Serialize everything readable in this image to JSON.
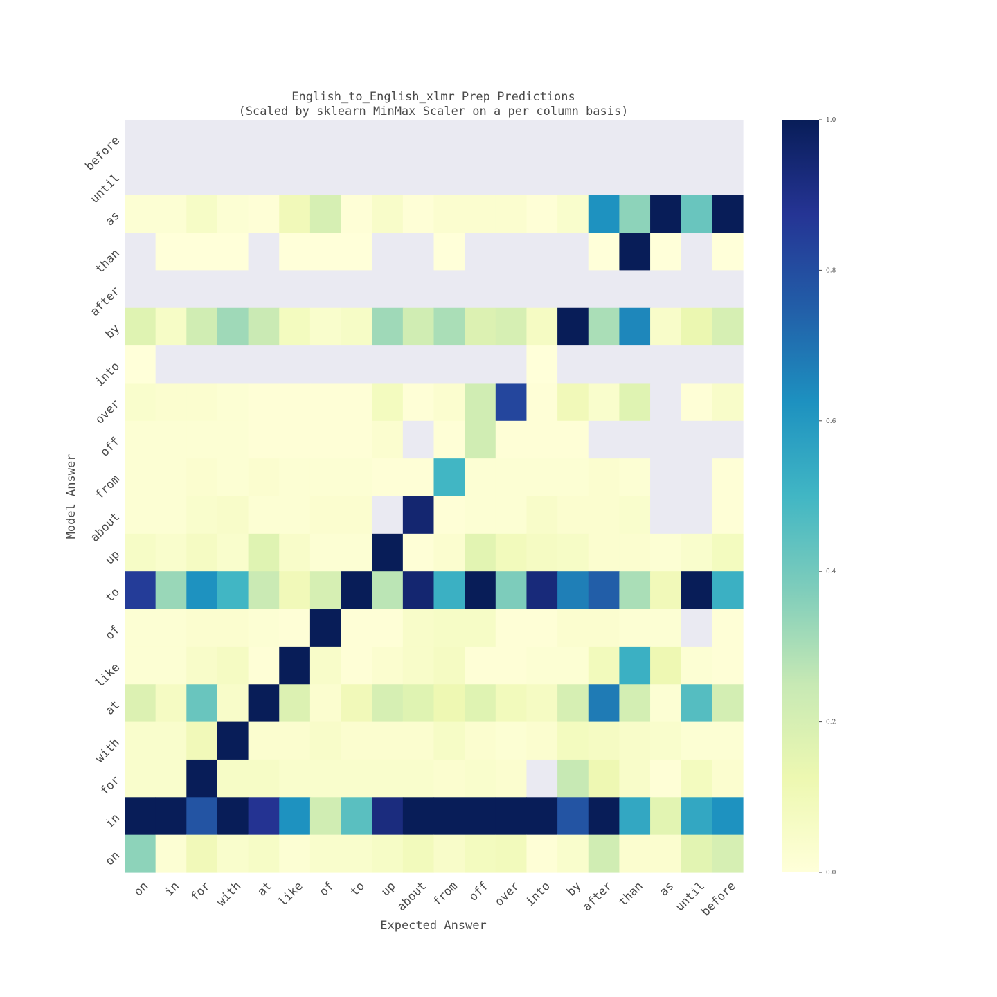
{
  "chart_data": {
    "type": "heatmap",
    "title": "English_to_English_xlmr Prep Predictions",
    "subtitle": "(Scaled by sklearn MinMax Scaler on a per column basis)",
    "xlabel": "Expected Answer",
    "ylabel": "Model Answer",
    "x_categories": [
      "on",
      "in",
      "for",
      "with",
      "at",
      "like",
      "of",
      "to",
      "up",
      "about",
      "from",
      "off",
      "over",
      "into",
      "by",
      "after",
      "than",
      "as",
      "until",
      "before"
    ],
    "y_categories": [
      "before",
      "until",
      "as",
      "than",
      "after",
      "by",
      "into",
      "over",
      "off",
      "from",
      "about",
      "up",
      "to",
      "of",
      "like",
      "at",
      "with",
      "for",
      "in",
      "on"
    ],
    "values": [
      [
        null,
        null,
        null,
        null,
        null,
        null,
        null,
        null,
        null,
        null,
        null,
        null,
        null,
        null,
        null,
        null,
        null,
        null,
        null,
        null
      ],
      [
        null,
        null,
        null,
        null,
        null,
        null,
        null,
        null,
        null,
        null,
        null,
        null,
        null,
        null,
        null,
        null,
        null,
        null,
        null,
        null
      ],
      [
        0.02,
        0.02,
        0.06,
        0.02,
        0.01,
        0.1,
        0.2,
        0.01,
        0.05,
        0.01,
        0.03,
        0.03,
        0.03,
        0.01,
        0.04,
        0.62,
        0.35,
        1.0,
        0.42,
        1.0
      ],
      [
        null,
        0.0,
        0.0,
        0.0,
        null,
        0.0,
        0.0,
        0.0,
        null,
        null,
        0.0,
        null,
        null,
        null,
        null,
        0.0,
        1.0,
        0.0,
        null,
        0.0
      ],
      [
        null,
        null,
        null,
        null,
        null,
        null,
        null,
        null,
        null,
        null,
        null,
        null,
        null,
        null,
        null,
        null,
        null,
        null,
        null,
        null
      ],
      [
        0.17,
        0.06,
        0.22,
        0.32,
        0.24,
        0.08,
        0.04,
        0.06,
        0.32,
        0.22,
        0.3,
        0.18,
        0.2,
        0.07,
        1.0,
        0.3,
        0.65,
        0.05,
        0.13,
        0.2
      ],
      [
        0.0,
        null,
        null,
        null,
        null,
        null,
        null,
        null,
        null,
        null,
        null,
        null,
        null,
        0.0,
        null,
        null,
        null,
        null,
        null,
        null
      ],
      [
        0.04,
        0.03,
        0.03,
        0.02,
        0.01,
        0.01,
        0.01,
        0.01,
        0.08,
        0.01,
        0.03,
        0.22,
        0.82,
        0.01,
        0.1,
        0.04,
        0.17,
        null,
        0.01,
        0.05
      ],
      [
        0.02,
        0.02,
        0.02,
        0.02,
        0.01,
        0.01,
        0.01,
        0.01,
        0.03,
        null,
        0.01,
        0.22,
        0.01,
        0.01,
        0.01,
        null,
        null,
        null,
        null,
        null
      ],
      [
        0.02,
        0.02,
        0.03,
        0.02,
        0.03,
        0.02,
        0.02,
        0.02,
        0.01,
        0.01,
        0.5,
        0.02,
        0.02,
        0.02,
        0.02,
        0.03,
        0.02,
        null,
        null,
        0.01
      ],
      [
        0.02,
        0.02,
        0.04,
        0.05,
        0.02,
        0.02,
        0.03,
        0.03,
        null,
        0.95,
        0.01,
        0.02,
        0.02,
        0.05,
        0.03,
        0.03,
        0.04,
        null,
        null,
        0.01
      ],
      [
        0.06,
        0.04,
        0.07,
        0.04,
        0.17,
        0.05,
        0.02,
        0.02,
        1.0,
        0.01,
        0.03,
        0.16,
        0.09,
        0.07,
        0.06,
        0.03,
        0.03,
        0.02,
        0.04,
        0.08
      ],
      [
        0.85,
        0.33,
        0.62,
        0.5,
        0.24,
        0.1,
        0.2,
        1.0,
        0.27,
        0.95,
        0.52,
        1.0,
        0.38,
        0.93,
        0.67,
        0.75,
        0.3,
        0.1,
        1.0,
        0.52
      ],
      [
        0.02,
        0.02,
        0.03,
        0.03,
        0.02,
        0.01,
        1.0,
        0.01,
        0.01,
        0.05,
        0.06,
        0.06,
        0.01,
        0.01,
        0.03,
        0.03,
        0.02,
        0.02,
        null,
        0.01
      ],
      [
        0.02,
        0.02,
        0.05,
        0.07,
        0.01,
        1.0,
        0.05,
        0.01,
        0.03,
        0.05,
        0.07,
        0.01,
        0.01,
        0.02,
        0.02,
        0.09,
        0.52,
        0.12,
        0.02,
        0.01
      ],
      [
        0.18,
        0.07,
        0.42,
        0.05,
        1.0,
        0.18,
        0.03,
        0.1,
        0.2,
        0.17,
        0.12,
        0.17,
        0.09,
        0.07,
        0.2,
        0.68,
        0.21,
        0.02,
        0.46,
        0.21
      ],
      [
        0.04,
        0.04,
        0.1,
        1.0,
        0.03,
        0.03,
        0.05,
        0.03,
        0.03,
        0.03,
        0.06,
        0.03,
        0.02,
        0.03,
        0.08,
        0.07,
        0.05,
        0.04,
        0.02,
        0.02
      ],
      [
        0.04,
        0.04,
        1.0,
        0.06,
        0.06,
        0.04,
        0.04,
        0.04,
        0.04,
        0.04,
        0.03,
        0.04,
        0.03,
        null,
        0.25,
        0.12,
        0.05,
        0.01,
        0.08,
        0.03
      ],
      [
        1.0,
        1.0,
        0.78,
        1.0,
        0.88,
        0.62,
        0.22,
        0.45,
        0.92,
        1.0,
        1.0,
        1.0,
        1.0,
        1.0,
        0.78,
        1.0,
        0.55,
        0.16,
        0.55,
        0.62
      ],
      [
        0.35,
        0.02,
        0.1,
        0.04,
        0.06,
        0.02,
        0.04,
        0.04,
        0.06,
        0.09,
        0.05,
        0.08,
        0.09,
        0.01,
        0.04,
        0.22,
        0.03,
        0.03,
        0.16,
        0.2
      ]
    ],
    "colorbar": {
      "ticks": [
        "0.0",
        "0.2",
        "0.4",
        "0.6",
        "0.8",
        "1.0"
      ],
      "min": 0,
      "max": 1,
      "colormap": "YlGnBu"
    },
    "missing_color": "#eaeaf2"
  }
}
